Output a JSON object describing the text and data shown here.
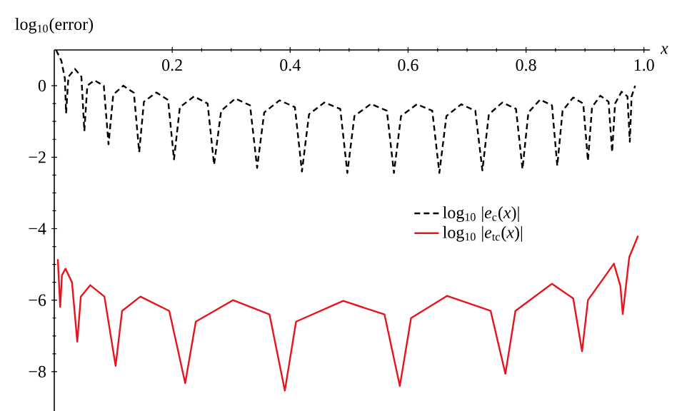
{
  "chart_data": {
    "type": "line",
    "ylabel": "log$_{10}$(error)",
    "xlabel": "x",
    "xlim": [
      0,
      1.01
    ],
    "ylim": [
      -9.1,
      1
    ],
    "xticks": [
      0.2,
      0.4,
      0.6,
      0.8,
      {
        "value": 1,
        "label": "1.0"
      }
    ],
    "yticks": [
      0,
      {
        "value": -2,
        "label": "−2"
      },
      {
        "value": -4,
        "label": "−4"
      },
      {
        "value": -6,
        "label": "−6"
      },
      {
        "value": -8,
        "label": "−8"
      }
    ],
    "legend": "right",
    "grid": false,
    "series": [
      {
        "name": "log$_{10}$ |*e*$_{c}$(*x*)|",
        "color": "#000000",
        "line_style": "dashed",
        "x": [
          0.003,
          0.012,
          0.018,
          0.02,
          0.024,
          0.035,
          0.046,
          0.051,
          0.056,
          0.068,
          0.084,
          0.092,
          0.1,
          0.117,
          0.135,
          0.144,
          0.152,
          0.173,
          0.193,
          0.203,
          0.213,
          0.237,
          0.26,
          0.271,
          0.283,
          0.307,
          0.332,
          0.344,
          0.356,
          0.382,
          0.408,
          0.42,
          0.432,
          0.458,
          0.485,
          0.497,
          0.509,
          0.537,
          0.564,
          0.576,
          0.588,
          0.615,
          0.641,
          0.653,
          0.665,
          0.69,
          0.714,
          0.726,
          0.737,
          0.76,
          0.783,
          0.794,
          0.804,
          0.824,
          0.844,
          0.853,
          0.862,
          0.88,
          0.897,
          0.905,
          0.912,
          0.926,
          0.94,
          0.946,
          0.951,
          0.962,
          0.972,
          0.976,
          0.979,
          0.985
        ],
        "values": [
          1.0,
          0.7,
          0.2,
          -0.77,
          0.25,
          0.47,
          0.25,
          -1.27,
          0.0,
          0.15,
          0.0,
          -1.64,
          -0.25,
          0.0,
          -0.2,
          -1.86,
          -0.45,
          -0.19,
          -0.4,
          -2.06,
          -0.6,
          -0.3,
          -0.5,
          -2.21,
          -0.7,
          -0.36,
          -0.55,
          -2.3,
          -0.75,
          -0.41,
          -0.6,
          -2.4,
          -0.8,
          -0.47,
          -0.65,
          -2.44,
          -0.85,
          -0.51,
          -0.7,
          -2.44,
          -0.85,
          -0.52,
          -0.7,
          -2.44,
          -0.85,
          -0.52,
          -0.7,
          -2.37,
          -0.8,
          -0.47,
          -0.65,
          -2.33,
          -0.75,
          -0.39,
          -0.55,
          -2.24,
          -0.7,
          -0.33,
          -0.5,
          -2.1,
          -0.6,
          -0.28,
          -0.45,
          -1.86,
          -0.5,
          -0.17,
          -0.3,
          -1.57,
          -0.3,
          0.0
        ]
      },
      {
        "name": "log$_{10}$ |*e*$_{tc}$(*x*)|",
        "color": "#e8141c",
        "line_style": "solid",
        "x": [
          0.006,
          0.01,
          0.013,
          0.019,
          0.03,
          0.039,
          0.045,
          0.061,
          0.085,
          0.104,
          0.115,
          0.146,
          0.195,
          0.222,
          0.24,
          0.303,
          0.365,
          0.391,
          0.41,
          0.49,
          0.56,
          0.586,
          0.605,
          0.666,
          0.74,
          0.765,
          0.782,
          0.844,
          0.88,
          0.895,
          0.905,
          0.949,
          0.96,
          0.964,
          0.975,
          0.99
        ],
        "values": [
          -4.85,
          -6.19,
          -5.3,
          -5.12,
          -5.5,
          -7.16,
          -5.9,
          -5.58,
          -5.9,
          -7.84,
          -6.3,
          -5.9,
          -6.3,
          -8.32,
          -6.6,
          -6.0,
          -6.4,
          -8.53,
          -6.6,
          -6.02,
          -6.4,
          -8.4,
          -6.5,
          -5.88,
          -6.3,
          -8.06,
          -6.3,
          -5.54,
          -5.95,
          -7.43,
          -6.0,
          -4.98,
          -5.6,
          -6.39,
          -4.8,
          -4.2
        ]
      }
    ]
  }
}
